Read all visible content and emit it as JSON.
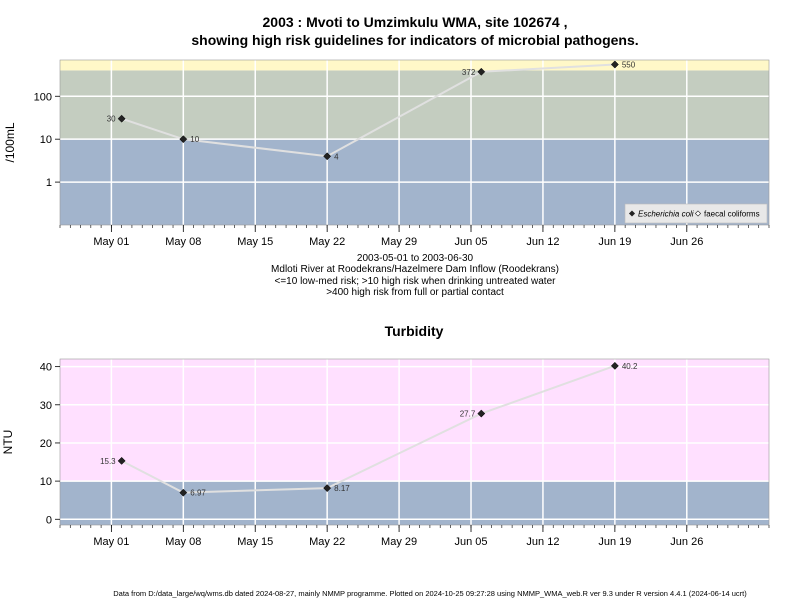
{
  "chart_title_line1": "2003 : Mvoti to Umzimkulu WMA, site 102674 ,",
  "chart_title_line2": "showing high risk guidelines for indicators of microbial pathogens.",
  "info_lines": [
    "2003-05-01 to 2003-06-30",
    "Mdloti River at Roodekrans/Hazelmere Dam Inflow (Roodekrans)",
    "<=10 low-med risk; >10 high risk when drinking untreated water",
    ">400 high risk from full or partial contact"
  ],
  "footer": "Data from D:/data_large/wq/wms.db dated 2024-08-27, mainly NMMP programme. Plotted on 2024-10-25 09:27:28 using NMMP_WMA_web.R ver 9.3 under R version 4.4.1 (2024-06-14 ucrt)",
  "colors": {
    "low_band": "#a2b4cc",
    "mid_band": "#c4cdc0",
    "high_band": "#fff8c8",
    "turbidity_high_band": "#ffe0ff",
    "grid": "#ffffff",
    "line": "#e0e0e0",
    "point": "#222222"
  },
  "chart_data": [
    {
      "type": "line",
      "title": "",
      "ylabel": "/100mL",
      "yscale": "log",
      "ylim": [
        0.1,
        700
      ],
      "xlim": [
        "2003-04-26",
        "2003-07-04"
      ],
      "x_ticks": [
        "May 01",
        "May 08",
        "May 15",
        "May 22",
        "May 29",
        "Jun 05",
        "Jun 12",
        "Jun 19",
        "Jun 26"
      ],
      "y_ticks": [
        "1",
        "10",
        "100"
      ],
      "bands": [
        {
          "from": 0.1,
          "to": 10,
          "color": "#a2b4cc"
        },
        {
          "from": 10,
          "to": 400,
          "color": "#c4cdc0"
        },
        {
          "from": 400,
          "to": 700,
          "color": "#fff8c8"
        }
      ],
      "legend": {
        "placement": "bottom-right",
        "entries": [
          {
            "label": "Escherichia coli",
            "symbol": "filled-diamond"
          },
          {
            "label": "faecal coliforms",
            "symbol": "open-diamond"
          }
        ]
      },
      "series": [
        {
          "name": "Escherichia coli",
          "x": [
            "2003-05-02",
            "2003-05-08",
            "2003-05-22",
            "2003-06-06",
            "2003-06-19"
          ],
          "values": [
            30,
            10,
            4,
            372,
            550
          ],
          "labels": [
            "30",
            "10",
            "4",
            "372",
            "550"
          ]
        }
      ]
    },
    {
      "type": "line",
      "title": "Turbidity",
      "ylabel": "NTU",
      "ylim": [
        -1.5,
        42
      ],
      "xlim": [
        "2003-04-26",
        "2003-07-04"
      ],
      "x_ticks": [
        "May 01",
        "May 08",
        "May 15",
        "May 22",
        "May 29",
        "Jun 05",
        "Jun 12",
        "Jun 19",
        "Jun 26"
      ],
      "y_ticks": [
        "0",
        "10",
        "20",
        "30",
        "40"
      ],
      "bands": [
        {
          "from": -1.5,
          "to": 10,
          "color": "#a2b4cc"
        },
        {
          "from": 10,
          "to": 42,
          "color": "#ffe0ff"
        }
      ],
      "series": [
        {
          "name": "Turbidity",
          "x": [
            "2003-05-02",
            "2003-05-08",
            "2003-05-22",
            "2003-06-06",
            "2003-06-19"
          ],
          "values": [
            15.3,
            6.97,
            8.17,
            27.7,
            40.2
          ],
          "labels": [
            "15.3",
            "6.97",
            "8.17",
            "27.7",
            "40.2"
          ]
        }
      ]
    }
  ]
}
